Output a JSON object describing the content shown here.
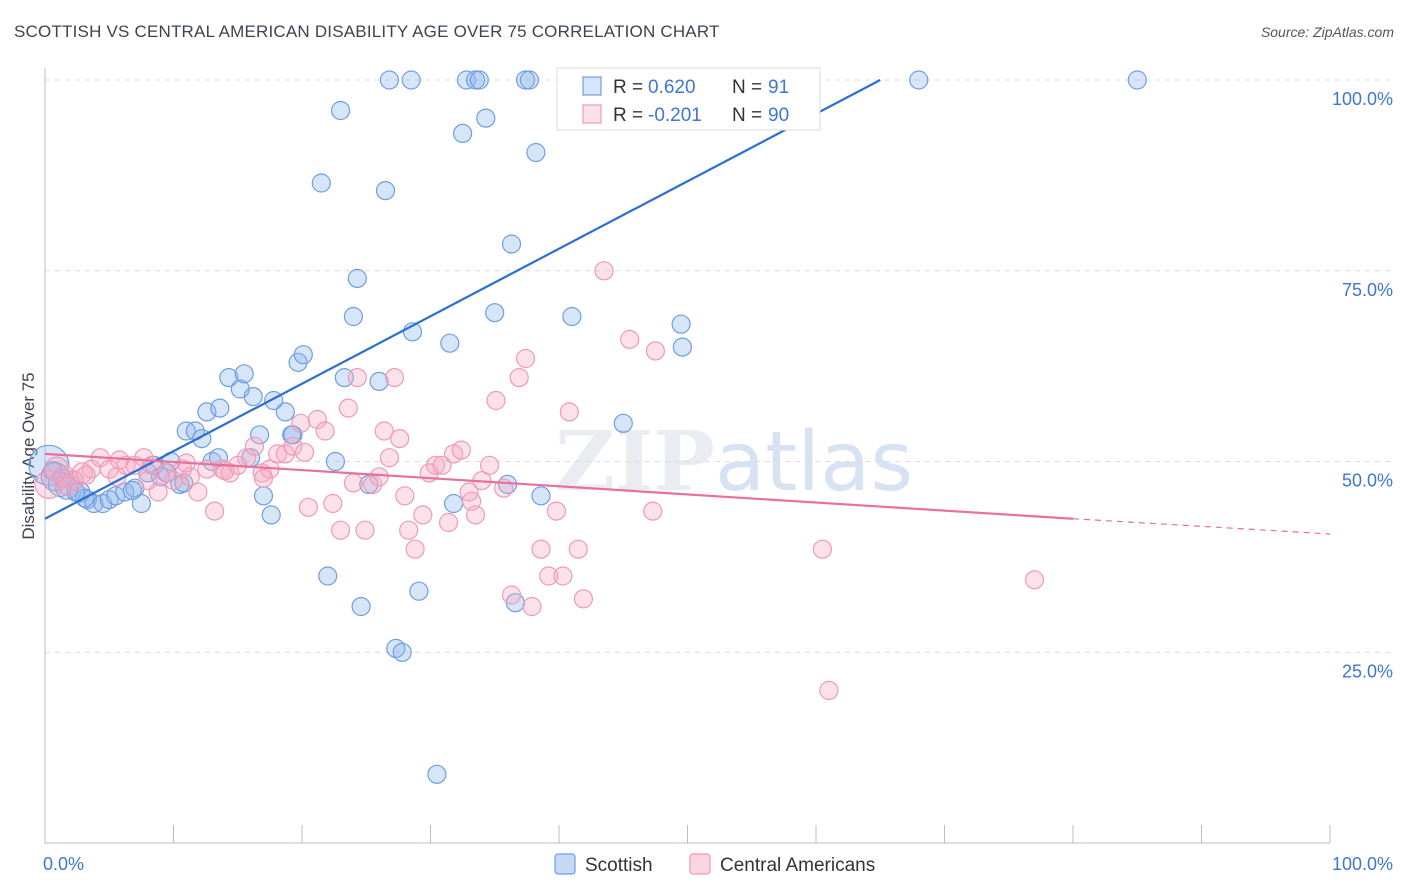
{
  "title": "SCOTTISH VS CENTRAL AMERICAN DISABILITY AGE OVER 75 CORRELATION CHART",
  "source": "Source: ZipAtlas.com",
  "watermark": "ZIPatlas",
  "chart_data": {
    "type": "scatter",
    "ylabel": "Disability Age Over 75",
    "xlabel": "",
    "xlim": [
      0,
      100
    ],
    "ylim": [
      0,
      100
    ],
    "x_tick_labels": [
      "0.0%",
      "100.0%"
    ],
    "y_tick_labels": [
      "100.0%",
      "75.0%",
      "50.0%",
      "25.0%"
    ],
    "y_tick_values": [
      100,
      75,
      50,
      25
    ],
    "grid": "horizontal dashed",
    "legend_position": "bottom-center",
    "stats_box": [
      {
        "r_label": "R =",
        "r": "0.620",
        "n_label": "N =",
        "n": "91"
      },
      {
        "r_label": "R =",
        "r": "-0.201",
        "n_label": "N =",
        "n": "90"
      }
    ],
    "series": [
      {
        "name": "Scottish",
        "color": "#6f9fe0",
        "fill": "rgba(140,180,235,0.35)",
        "trend_color": "#2b6fd0",
        "trend": {
          "x0": 0,
          "y0": 42.5,
          "x1": 65,
          "y1": 100
        },
        "points": [
          [
            0.3,
            49.5,
            20
          ],
          [
            0.8,
            48,
            14
          ],
          [
            1.2,
            47,
            12
          ],
          [
            1.7,
            46.5,
            11
          ],
          [
            2.2,
            47.5,
            10
          ],
          [
            2.7,
            46,
            10
          ],
          [
            3.3,
            45,
            9
          ],
          [
            3.8,
            44.5,
            9
          ],
          [
            4.5,
            44.5,
            9
          ],
          [
            5,
            45,
            9
          ],
          [
            5.5,
            45.5,
            9
          ],
          [
            6.2,
            46,
            9
          ],
          [
            7,
            46.5,
            9
          ],
          [
            7.5,
            44.5,
            9
          ],
          [
            8,
            48.5,
            9
          ],
          [
            8.5,
            49.5,
            9
          ],
          [
            9,
            48,
            9
          ],
          [
            9.8,
            50,
            9
          ],
          [
            10.5,
            47,
            9
          ],
          [
            11,
            54,
            9
          ],
          [
            11.7,
            54,
            9
          ],
          [
            12.2,
            53,
            9
          ],
          [
            12.6,
            56.5,
            9
          ],
          [
            13,
            50,
            9
          ],
          [
            13.6,
            57,
            9
          ],
          [
            14.3,
            61,
            9
          ],
          [
            15.2,
            59.5,
            9
          ],
          [
            16,
            50.5,
            9
          ],
          [
            16.7,
            53.5,
            9
          ],
          [
            16.2,
            58.5,
            9
          ],
          [
            17,
            45.5,
            9
          ],
          [
            17.6,
            43,
            9
          ],
          [
            18.7,
            56.5,
            9
          ],
          [
            19.3,
            53.5,
            9
          ],
          [
            19.7,
            63,
            9
          ],
          [
            20.1,
            64,
            9
          ],
          [
            21.5,
            86.5,
            9
          ],
          [
            22,
            35,
            9
          ],
          [
            22.6,
            50,
            9
          ],
          [
            23,
            96,
            9
          ],
          [
            23.3,
            61,
            9
          ],
          [
            24,
            69,
            9
          ],
          [
            24.3,
            74,
            9
          ],
          [
            24.6,
            31,
            9
          ],
          [
            25.2,
            47,
            9
          ],
          [
            26,
            60.5,
            9
          ],
          [
            26.5,
            85.5,
            9
          ],
          [
            26.8,
            100,
            9
          ],
          [
            27.3,
            25.5,
            9
          ],
          [
            27.8,
            25,
            9
          ],
          [
            28.5,
            100,
            9
          ],
          [
            28.6,
            67,
            9
          ],
          [
            29.1,
            33,
            9
          ],
          [
            30.5,
            9,
            9
          ],
          [
            31.5,
            65.5,
            9
          ],
          [
            31.8,
            44.5,
            9
          ],
          [
            32.5,
            93,
            9
          ],
          [
            32.8,
            100,
            9
          ],
          [
            33.5,
            100,
            9
          ],
          [
            33.8,
            100,
            9
          ],
          [
            34.3,
            95,
            9
          ],
          [
            35,
            69.5,
            9
          ],
          [
            36,
            47,
            9
          ],
          [
            36.3,
            78.5,
            9
          ],
          [
            36.6,
            31.5,
            9
          ],
          [
            37.4,
            100,
            9
          ],
          [
            37.7,
            100,
            9
          ],
          [
            38.2,
            90.5,
            9
          ],
          [
            38.6,
            45.5,
            9
          ],
          [
            41,
            69,
            9
          ],
          [
            43,
            100,
            9
          ],
          [
            45,
            55,
            9
          ],
          [
            46,
            100,
            9
          ],
          [
            49,
            100,
            9
          ],
          [
            49.5,
            68,
            9
          ],
          [
            49.6,
            65,
            9
          ],
          [
            55,
            100,
            9
          ],
          [
            59,
            100,
            9
          ],
          [
            68,
            100,
            9
          ],
          [
            85,
            100,
            9
          ],
          [
            19.2,
            53.5,
            9
          ],
          [
            17.8,
            58,
            9
          ],
          [
            15.5,
            61.5,
            9
          ],
          [
            13.5,
            50.5,
            9
          ],
          [
            10.8,
            47.2,
            9
          ],
          [
            6.8,
            46.2,
            9
          ],
          [
            3.1,
            45.2,
            9
          ],
          [
            2.4,
            46,
            9
          ],
          [
            1.4,
            47.8,
            9
          ],
          [
            0.6,
            48.8,
            9
          ],
          [
            9.5,
            48.5,
            9
          ]
        ]
      },
      {
        "name": "Central Americans",
        "color": "#ef9ab8",
        "fill": "rgba(245,170,196,0.35)",
        "trend_color": "#e8709a",
        "trend": {
          "x0": 0,
          "y0": 51,
          "x1": 80,
          "y1": 42.5,
          "dash_x1": 100,
          "dash_y1": 40.5
        },
        "points": [
          [
            0.3,
            47,
            14
          ],
          [
            0.9,
            49,
            12
          ],
          [
            1.5,
            48,
            11
          ],
          [
            2.2,
            47.5,
            10
          ],
          [
            2.9,
            48.5,
            10
          ],
          [
            3.6,
            49,
            9
          ],
          [
            4.3,
            50.5,
            9
          ],
          [
            5,
            49,
            9
          ],
          [
            5.6,
            48,
            9
          ],
          [
            6.3,
            49.5,
            9
          ],
          [
            7,
            49.5,
            9
          ],
          [
            7.7,
            50.5,
            9
          ],
          [
            8.3,
            49.5,
            9
          ],
          [
            8.8,
            46,
            9
          ],
          [
            9.4,
            48.5,
            9
          ],
          [
            10,
            47.5,
            9
          ],
          [
            10.7,
            49,
            9
          ],
          [
            11.3,
            48,
            9
          ],
          [
            11.9,
            46,
            9
          ],
          [
            12.6,
            49,
            9
          ],
          [
            13.2,
            43.5,
            9
          ],
          [
            13.8,
            49,
            9
          ],
          [
            14.4,
            48.5,
            9
          ],
          [
            15,
            49.5,
            9
          ],
          [
            15.7,
            50.5,
            9
          ],
          [
            16.3,
            52,
            9
          ],
          [
            16.9,
            48.5,
            9
          ],
          [
            17.5,
            49,
            9
          ],
          [
            18.1,
            51,
            9
          ],
          [
            18.7,
            51,
            9
          ],
          [
            19.3,
            52,
            9
          ],
          [
            19.9,
            55,
            9
          ],
          [
            20.5,
            44,
            9
          ],
          [
            21.2,
            55.5,
            9
          ],
          [
            21.8,
            54,
            9
          ],
          [
            22.4,
            44.5,
            9
          ],
          [
            23,
            41,
            9
          ],
          [
            23.6,
            57,
            9
          ],
          [
            24.3,
            61,
            9
          ],
          [
            24.9,
            41,
            9
          ],
          [
            25.5,
            47,
            9
          ],
          [
            26,
            48,
            9
          ],
          [
            26.4,
            54,
            9
          ],
          [
            26.8,
            50.5,
            9
          ],
          [
            27.2,
            61,
            9
          ],
          [
            27.6,
            53,
            9
          ],
          [
            28.3,
            41,
            9
          ],
          [
            28.8,
            38.5,
            9
          ],
          [
            29.4,
            43,
            9
          ],
          [
            29.9,
            48.5,
            9
          ],
          [
            30.4,
            49.5,
            9
          ],
          [
            30.9,
            49.5,
            9
          ],
          [
            31.4,
            42,
            9
          ],
          [
            31.8,
            51,
            9
          ],
          [
            32.4,
            51.5,
            9
          ],
          [
            33,
            46,
            9
          ],
          [
            33.5,
            43,
            9
          ],
          [
            34,
            47.5,
            9
          ],
          [
            34.6,
            49.5,
            9
          ],
          [
            35.1,
            58,
            9
          ],
          [
            35.7,
            46.5,
            9
          ],
          [
            36.3,
            32.5,
            9
          ],
          [
            36.9,
            61,
            9
          ],
          [
            37.4,
            63.5,
            9
          ],
          [
            37.9,
            31,
            9
          ],
          [
            38.6,
            38.5,
            9
          ],
          [
            39.2,
            35,
            9
          ],
          [
            39.8,
            43.5,
            9
          ],
          [
            40.3,
            35,
            9
          ],
          [
            40.8,
            56.5,
            9
          ],
          [
            41.5,
            38.5,
            9
          ],
          [
            41.9,
            32,
            9
          ],
          [
            43.5,
            75,
            9
          ],
          [
            45.5,
            66,
            9
          ],
          [
            47.3,
            43.5,
            9
          ],
          [
            47.5,
            64.5,
            9
          ],
          [
            60.5,
            38.5,
            9
          ],
          [
            61,
            20,
            9
          ],
          [
            77,
            34.5,
            9
          ],
          [
            1.8,
            46.8,
            9
          ],
          [
            3.2,
            48.2,
            9
          ],
          [
            5.8,
            50.2,
            9
          ],
          [
            8,
            47.5,
            9
          ],
          [
            11,
            49.8,
            9
          ],
          [
            14,
            48.8,
            9
          ],
          [
            17,
            47.8,
            9
          ],
          [
            20.2,
            51.2,
            9
          ],
          [
            24,
            47.2,
            9
          ],
          [
            28,
            45.5,
            9
          ],
          [
            33.2,
            44.8,
            9
          ]
        ]
      }
    ]
  },
  "legend": {
    "items": [
      {
        "label": "Scottish",
        "color": "#6f9fe0",
        "fill": "rgba(140,180,235,0.5)"
      },
      {
        "label": "Central Americans",
        "color": "#ef9ab8",
        "fill": "rgba(245,170,196,0.5)"
      }
    ]
  },
  "colors": {
    "axis_label_blue": "#3f76cf",
    "r_value_blue": "#3f76cf",
    "grid": "#d8dce3"
  }
}
